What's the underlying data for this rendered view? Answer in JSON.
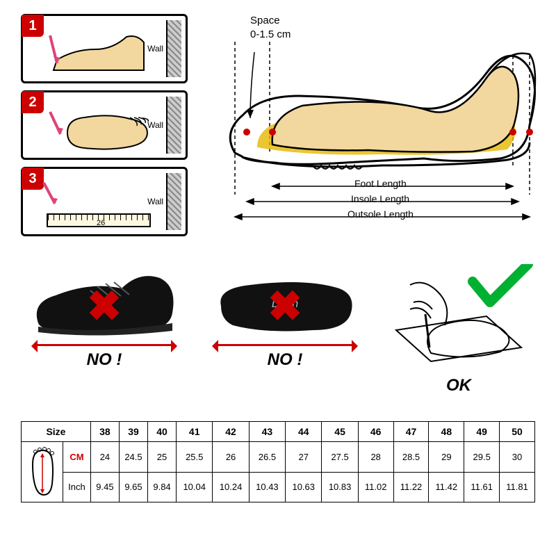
{
  "steps": {
    "items": [
      {
        "num": "1",
        "wall": "Wall"
      },
      {
        "num": "2",
        "wall": "Wall"
      },
      {
        "num": "3",
        "wall": "Wall",
        "ruler_value": "26"
      }
    ],
    "style": {
      "border_color": "#000000",
      "badge_bg": "#cc0000",
      "badge_fg": "#ffffff",
      "wall_hatch": [
        "#888888",
        "#cccccc"
      ]
    }
  },
  "shoe_diagram": {
    "space_label_line1": "Space",
    "space_label_line2": "0-1.5 cm",
    "dims": {
      "foot": "Foot Length",
      "insole": "Insole Length",
      "outsole": "Outsole Length"
    },
    "colors": {
      "foot_fill": "#f2d89e",
      "foot_stroke": "#000000",
      "insole_fill": "#e6b800",
      "shoe_stroke": "#000000",
      "red_dot": "#cc0000",
      "dash": "#000000"
    }
  },
  "middle": {
    "items": [
      {
        "kind": "shoe",
        "caption": "NO !",
        "mark": "x",
        "arrow_color": "#cc0000"
      },
      {
        "kind": "insole",
        "caption": "NO !",
        "mark": "x",
        "insole_brand": "DnLn",
        "arrow_color": "#cc0000"
      },
      {
        "kind": "trace",
        "caption": "OK",
        "mark": "check",
        "check_color": "#00b030"
      }
    ]
  },
  "size_table": {
    "header": "Size",
    "row_labels": {
      "cm": "CM",
      "inch": "Inch"
    },
    "columns": [
      "38",
      "39",
      "40",
      "41",
      "42",
      "43",
      "44",
      "45",
      "46",
      "47",
      "48",
      "49",
      "50"
    ],
    "cm": [
      "24",
      "24.5",
      "25",
      "25.5",
      "26",
      "26.5",
      "27",
      "27.5",
      "28",
      "28.5",
      "29",
      "29.5",
      "30"
    ],
    "inch": [
      "9.45",
      "9.65",
      "9.84",
      "10.04",
      "10.24",
      "10.43",
      "10.63",
      "10.83",
      "11.02",
      "11.22",
      "11.42",
      "11.61",
      "11.81"
    ],
    "style": {
      "border": "#000000",
      "cm_color": "#cc0000",
      "fontsize_pt": 10
    }
  }
}
